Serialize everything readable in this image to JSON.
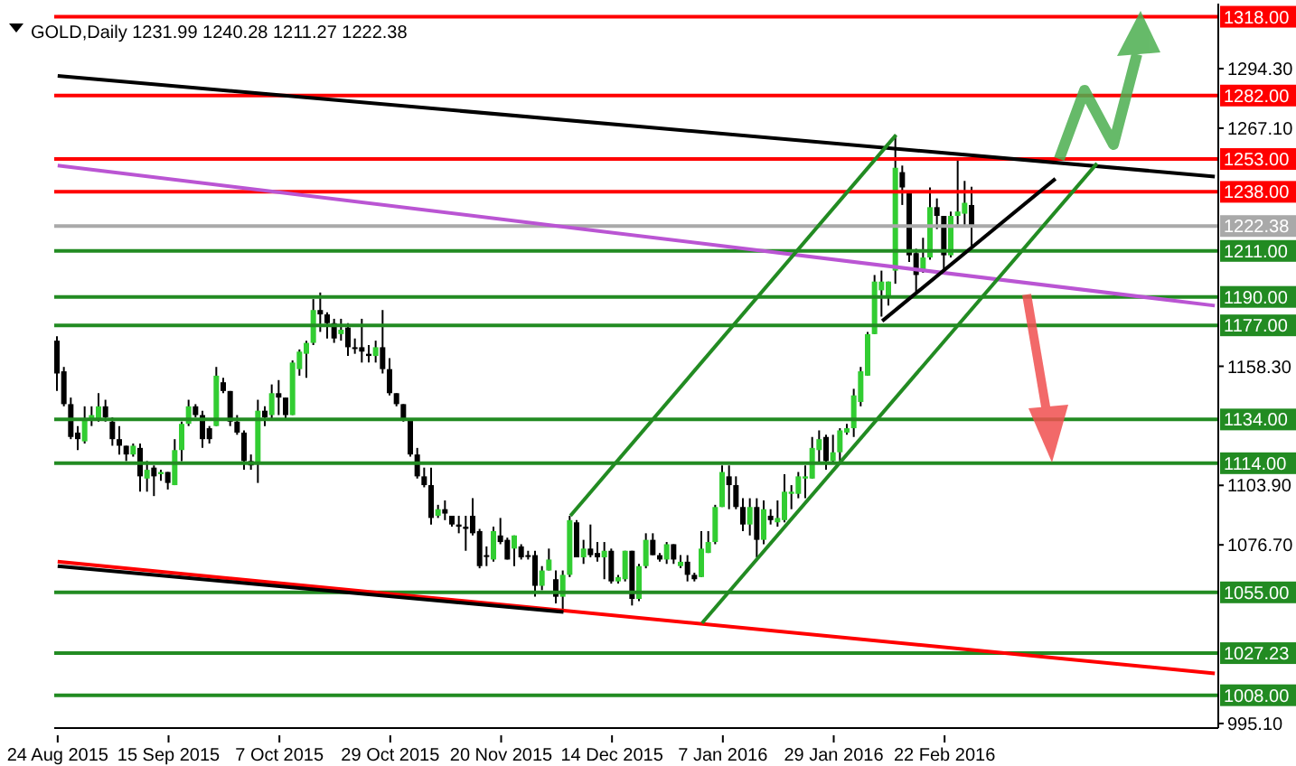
{
  "chart_data": {
    "type": "candlestick",
    "title": "GOLD,Daily 1231.99 1240.28 1211.27 1222.38",
    "categories": [
      "24 Aug 2015",
      null,
      null,
      null,
      null,
      null,
      null,
      null,
      null,
      null,
      null,
      null,
      null,
      null,
      null,
      null,
      "15 Sep 2015",
      null,
      null,
      null,
      null,
      null,
      null,
      null,
      null,
      null,
      null,
      null,
      null,
      null,
      null,
      null,
      "7 Oct 2015",
      null,
      null,
      null,
      null,
      null,
      null,
      null,
      null,
      null,
      null,
      null,
      null,
      null,
      null,
      null,
      "29 Oct 2015",
      null,
      null,
      null,
      null,
      null,
      null,
      null,
      null,
      null,
      null,
      null,
      null,
      null,
      null,
      null,
      "20 Nov 2015",
      null,
      null,
      null,
      null,
      null,
      null,
      null,
      null,
      null,
      null,
      null,
      null,
      null,
      null,
      null,
      "14 Dec 2015",
      null,
      null,
      null,
      null,
      null,
      null,
      null,
      null,
      null,
      null,
      null,
      null,
      null,
      null,
      null,
      "7 Jan 2016",
      null,
      null,
      null,
      null,
      null,
      null,
      null,
      null,
      null,
      null,
      null,
      null,
      null,
      null,
      null,
      "29 Jan 2016",
      null,
      null,
      null,
      null,
      null,
      null,
      null,
      null,
      null,
      null,
      null,
      null,
      null,
      null,
      null,
      "22 Feb 2016",
      null,
      null,
      null,
      null,
      null,
      null,
      null,
      null,
      null,
      null,
      null,
      null,
      null,
      null,
      null,
      null,
      null,
      null,
      null,
      null,
      null,
      null,
      null,
      null,
      null,
      null,
      null,
      null,
      null,
      null,
      null,
      null,
      null,
      null,
      null,
      null,
      null,
      null,
      null
    ],
    "ohlc": [
      [
        1170,
        1172,
        1147,
        1155
      ],
      [
        1156,
        1158,
        1140,
        1141
      ],
      [
        1141,
        1144,
        1125,
        1126
      ],
      [
        1128,
        1131,
        1120,
        1125
      ],
      [
        1124,
        1140,
        1123,
        1134
      ],
      [
        1134,
        1140,
        1131,
        1136
      ],
      [
        1134,
        1146,
        1133,
        1140
      ],
      [
        1140,
        1143,
        1133,
        1135
      ],
      [
        1133,
        1135,
        1122,
        1125
      ],
      [
        1125,
        1131,
        1118,
        1122
      ],
      [
        1122,
        1122,
        1115,
        1118
      ],
      [
        1118,
        1123,
        1117,
        1122
      ],
      [
        1121,
        1123,
        1101,
        1108
      ],
      [
        1107,
        1115,
        1101,
        1111
      ],
      [
        1112,
        1113,
        1099,
        1108
      ],
      [
        1109,
        1111,
        1106,
        1110
      ],
      [
        1110,
        1110,
        1102,
        1105
      ],
      [
        1104,
        1125,
        1104,
        1120
      ],
      [
        1120,
        1133,
        1115,
        1132
      ],
      [
        1132,
        1143,
        1131,
        1140
      ],
      [
        1140,
        1141,
        1135,
        1136
      ],
      [
        1136,
        1138,
        1121,
        1125
      ],
      [
        1130,
        1131,
        1123,
        1125
      ],
      [
        1131,
        1158,
        1131,
        1154
      ],
      [
        1151,
        1153,
        1146,
        1147
      ],
      [
        1147,
        1147,
        1131,
        1133
      ],
      [
        1133,
        1136,
        1127,
        1128
      ],
      [
        1128,
        1129,
        1111,
        1115
      ],
      [
        1115,
        1118,
        1111,
        1113
      ],
      [
        1114,
        1143,
        1105,
        1138
      ],
      [
        1138,
        1140,
        1131,
        1135
      ],
      [
        1136,
        1150,
        1134,
        1146
      ],
      [
        1146,
        1152,
        1136,
        1144
      ],
      [
        1144,
        1144,
        1134,
        1136
      ],
      [
        1136,
        1161,
        1136,
        1160
      ],
      [
        1157,
        1166,
        1154,
        1165
      ],
      [
        1164,
        1170,
        1153,
        1169
      ],
      [
        1169,
        1189,
        1168,
        1184
      ],
      [
        1184,
        1192,
        1174,
        1182
      ],
      [
        1182,
        1183,
        1171,
        1178
      ],
      [
        1178,
        1180,
        1169,
        1171
      ],
      [
        1173,
        1180,
        1170,
        1175
      ],
      [
        1176,
        1178,
        1163,
        1167
      ],
      [
        1167,
        1171,
        1164,
        1167
      ],
      [
        1167,
        1180,
        1160,
        1165
      ],
      [
        1164,
        1168,
        1160,
        1163
      ],
      [
        1163,
        1170,
        1160,
        1167
      ],
      [
        1167,
        1184,
        1155,
        1157
      ],
      [
        1157,
        1162,
        1145,
        1146
      ],
      [
        1146,
        1146,
        1140,
        1141
      ],
      [
        1141,
        1141,
        1133,
        1134
      ],
      [
        1134,
        1134,
        1117,
        1118
      ],
      [
        1118,
        1121,
        1107,
        1108
      ],
      [
        1108,
        1112,
        1103,
        1104
      ],
      [
        1104,
        1112,
        1086,
        1089
      ],
      [
        1090,
        1095,
        1089,
        1093
      ],
      [
        1093,
        1097,
        1088,
        1091
      ],
      [
        1090,
        1090,
        1085,
        1086
      ],
      [
        1086,
        1090,
        1082,
        1085
      ],
      [
        1085,
        1090,
        1074,
        1084
      ],
      [
        1090,
        1098,
        1081,
        1082
      ],
      [
        1083,
        1084,
        1066,
        1067
      ],
      [
        1072,
        1076,
        1067,
        1072
      ],
      [
        1070,
        1085,
        1069,
        1083
      ],
      [
        1081,
        1089,
        1077,
        1078
      ],
      [
        1079,
        1080,
        1070,
        1070
      ],
      [
        1075,
        1081,
        1067,
        1081
      ],
      [
        1076,
        1077,
        1070,
        1071
      ],
      [
        1072,
        1074,
        1070,
        1072
      ],
      [
        1072,
        1074,
        1053,
        1058
      ],
      [
        1058,
        1067,
        1056,
        1065
      ],
      [
        1065,
        1075,
        1065,
        1070
      ],
      [
        1061,
        1065,
        1050,
        1053
      ],
      [
        1053,
        1065,
        1047,
        1063
      ],
      [
        1063,
        1090,
        1062,
        1088
      ],
      [
        1087,
        1088,
        1071,
        1071
      ],
      [
        1071,
        1079,
        1068,
        1075
      ],
      [
        1075,
        1086,
        1071,
        1072
      ],
      [
        1073,
        1078,
        1069,
        1071
      ],
      [
        1071,
        1078,
        1061,
        1074
      ],
      [
        1074,
        1075,
        1059,
        1060
      ],
      [
        1060,
        1063,
        1059,
        1062
      ],
      [
        1061,
        1074,
        1060,
        1074
      ],
      [
        1074,
        1074,
        1049,
        1052
      ],
      [
        1052,
        1068,
        1051,
        1067
      ],
      [
        1067,
        1082,
        1066,
        1079
      ],
      [
        1079,
        1082,
        1072,
        1072
      ],
      [
        1072,
        1073,
        1069,
        1070
      ],
      [
        1070,
        1078,
        1068,
        1077
      ],
      [
        1077,
        1077,
        1068,
        1070
      ],
      [
        1067,
        1072,
        1066,
        1069
      ],
      [
        1069,
        1072,
        1060,
        1063
      ],
      [
        1063,
        1064,
        1060,
        1061
      ],
      [
        1062,
        1083,
        1062,
        1075
      ],
      [
        1073,
        1083,
        1073,
        1078
      ],
      [
        1078,
        1095,
        1077,
        1094
      ],
      [
        1094,
        1113,
        1094,
        1110
      ],
      [
        1108,
        1113,
        1093,
        1104
      ],
      [
        1104,
        1108,
        1093,
        1094
      ],
      [
        1094,
        1098,
        1083,
        1086
      ],
      [
        1086,
        1098,
        1081,
        1094
      ],
      [
        1094,
        1098,
        1071,
        1079
      ],
      [
        1079,
        1097,
        1077,
        1093
      ],
      [
        1090,
        1093,
        1086,
        1088
      ],
      [
        1087,
        1097,
        1085,
        1089
      ],
      [
        1088,
        1109,
        1087,
        1101
      ],
      [
        1100,
        1104,
        1093,
        1101
      ],
      [
        1100,
        1110,
        1098,
        1108
      ],
      [
        1107,
        1113,
        1098,
        1108
      ],
      [
        1107,
        1126,
        1107,
        1121
      ],
      [
        1120,
        1129,
        1114,
        1125
      ],
      [
        1126,
        1127,
        1111,
        1115
      ],
      [
        1115,
        1127,
        1114,
        1119
      ],
      [
        1119,
        1130,
        1115,
        1129
      ],
      [
        1128,
        1132,
        1127,
        1130
      ],
      [
        1130,
        1148,
        1126,
        1145
      ],
      [
        1142,
        1158,
        1140,
        1156
      ],
      [
        1154,
        1174,
        1154,
        1173
      ],
      [
        1173,
        1200,
        1173,
        1197
      ],
      [
        1193,
        1202,
        1181,
        1197
      ],
      [
        1190,
        1197,
        1186,
        1197
      ],
      [
        1202,
        1264,
        1196,
        1249
      ],
      [
        1247,
        1250,
        1232,
        1240
      ],
      [
        1238,
        1238,
        1206,
        1209
      ],
      [
        1210,
        1212,
        1192,
        1200
      ],
      [
        1202,
        1217,
        1201,
        1208
      ],
      [
        1208,
        1240,
        1207,
        1231
      ],
      [
        1231,
        1235,
        1221,
        1227
      ],
      [
        1227,
        1227,
        1202,
        1209
      ],
      [
        1209,
        1229,
        1208,
        1227
      ],
      [
        1227,
        1253,
        1223,
        1229
      ],
      [
        1228,
        1243,
        1222,
        1233
      ],
      [
        1231.99,
        1240.28,
        1211.27,
        1222.38
      ],
      null,
      null,
      null,
      null,
      null,
      null,
      null,
      null,
      null,
      null,
      null,
      null,
      null,
      null,
      null,
      null,
      null,
      null,
      null,
      null,
      null,
      null,
      null,
      null,
      null,
      null,
      null,
      null,
      null,
      null,
      null,
      null,
      null,
      null,
      null
    ],
    "colors": [
      "#000000",
      "#000000",
      "#000000",
      "#000000",
      "#32cd32",
      "#32cd32",
      "#32cd32",
      "#000000",
      "#000000",
      "#000000",
      "#000000",
      "#32cd32",
      "#000000",
      "#32cd32",
      "#000000",
      "#32cd32",
      "#000000",
      "#32cd32",
      "#32cd32",
      "#32cd32",
      "#000000",
      "#000000",
      "#000000",
      "#32cd32",
      "#000000",
      "#000000",
      "#000000",
      "#000000",
      "#000000",
      "#32cd32",
      "#000000",
      "#32cd32",
      "#000000",
      "#000000",
      "#32cd32",
      "#32cd32",
      "#32cd32",
      "#32cd32",
      "#000000",
      "#000000",
      "#000000",
      "#32cd32",
      "#000000",
      "#000000",
      "#000000",
      "#000000",
      "#32cd32",
      "#000000",
      "#000000",
      "#000000",
      "#000000",
      "#000000",
      "#000000",
      "#000000",
      "#000000",
      "#32cd32",
      "#000000",
      "#000000",
      "#000000",
      "#000000",
      "#000000",
      "#000000",
      "#000000",
      "#32cd32",
      "#000000",
      "#000000",
      "#32cd32",
      "#000000",
      "#000000",
      "#000000",
      "#32cd32",
      "#32cd32",
      "#000000",
      "#32cd32",
      "#32cd32",
      "#000000",
      "#32cd32",
      "#000000",
      "#000000",
      "#32cd32",
      "#000000",
      "#32cd32",
      "#32cd32",
      "#000000",
      "#32cd32",
      "#32cd32",
      "#000000",
      "#000000",
      "#32cd32",
      "#000000",
      "#32cd32",
      "#000000",
      "#000000",
      "#32cd32",
      "#32cd32",
      "#32cd32",
      "#32cd32",
      "#000000",
      "#000000",
      "#000000",
      "#32cd32",
      "#000000",
      "#32cd32",
      "#000000",
      "#32cd32",
      "#32cd32",
      "#32cd32",
      "#32cd32",
      "#32cd32",
      "#32cd32",
      "#32cd32",
      "#000000",
      "#32cd32",
      "#32cd32",
      "#32cd32",
      "#32cd32",
      "#32cd32",
      "#32cd32",
      "#32cd32",
      "#32cd32",
      "#32cd32",
      "#32cd32",
      "#000000",
      "#000000",
      "#000000",
      "#32cd32",
      "#32cd32",
      "#000000",
      "#000000",
      "#32cd32",
      "#32cd32",
      "#32cd32",
      "#000000",
      null,
      null,
      null,
      null,
      null,
      null,
      null,
      null,
      null,
      null,
      null,
      null,
      null,
      null,
      null,
      null,
      null,
      null,
      null,
      null,
      null,
      null,
      null,
      null,
      null,
      null,
      null,
      null,
      null,
      null,
      null,
      null,
      null,
      null,
      null
    ],
    "series": [
      {
        "type": "line",
        "color": "#000000",
        "values": [
          1291,
          null,
          null,
          null,
          null,
          null,
          null,
          null,
          null,
          null,
          null,
          null,
          null,
          null,
          null,
          null,
          null,
          null,
          null,
          null,
          null,
          null,
          null,
          null,
          null,
          null,
          null,
          null,
          null,
          null,
          null,
          null,
          null,
          null,
          null,
          null,
          null,
          null,
          null,
          null,
          null,
          null,
          null,
          null,
          null,
          null,
          null,
          null,
          null,
          null,
          null,
          null,
          null,
          null,
          null,
          null,
          null,
          null,
          null,
          null,
          null,
          null,
          null,
          null,
          null,
          null,
          null,
          null,
          null,
          null,
          null,
          null,
          null,
          null,
          null,
          null,
          null,
          null,
          null,
          null,
          null,
          null,
          null,
          null,
          null,
          null,
          null,
          null,
          null,
          null,
          null,
          null,
          null,
          null,
          null,
          null,
          null,
          null,
          null,
          null,
          null,
          null,
          null,
          null,
          null,
          null,
          null,
          null,
          null,
          null,
          null,
          null,
          null,
          null,
          null,
          null,
          null,
          null,
          null,
          null,
          null,
          null,
          null,
          null,
          null,
          null,
          null,
          null,
          null,
          null,
          null,
          null,
          null,
          null,
          null,
          null,
          null,
          null,
          null,
          null,
          null,
          null,
          null,
          null,
          null,
          null,
          null,
          null,
          null,
          null,
          null,
          null,
          null,
          null,
          null,
          null,
          null,
          null,
          null,
          null,
          null,
          null,
          null,
          null,
          null,
          null,
          null,
          1245
        ]
      },
      {
        "type": "line",
        "color": "#ba55d3",
        "values": [
          1250,
          null,
          null,
          null,
          null,
          null,
          null,
          null,
          null,
          null,
          null,
          null,
          null,
          null,
          null,
          null,
          null,
          null,
          null,
          null,
          null,
          null,
          null,
          null,
          null,
          null,
          null,
          null,
          null,
          null,
          null,
          null,
          null,
          null,
          null,
          null,
          null,
          null,
          null,
          null,
          null,
          null,
          null,
          null,
          null,
          null,
          null,
          null,
          null,
          null,
          null,
          null,
          null,
          null,
          null,
          null,
          null,
          null,
          null,
          null,
          null,
          null,
          null,
          null,
          null,
          null,
          null,
          null,
          null,
          null,
          null,
          null,
          null,
          null,
          null,
          null,
          null,
          null,
          null,
          null,
          null,
          null,
          null,
          null,
          null,
          null,
          null,
          null,
          null,
          null,
          null,
          null,
          null,
          null,
          null,
          null,
          null,
          null,
          null,
          null,
          null,
          null,
          null,
          null,
          null,
          null,
          null,
          null,
          null,
          null,
          null,
          null,
          null,
          null,
          null,
          null,
          null,
          null,
          null,
          null,
          null,
          null,
          null,
          null,
          null,
          null,
          null,
          null,
          null,
          null,
          null,
          null,
          null,
          null,
          null,
          null,
          null,
          null,
          null,
          null,
          null,
          null,
          null,
          null,
          null,
          null,
          null,
          null,
          null,
          null,
          null,
          null,
          null,
          null,
          null,
          null,
          null,
          null,
          null,
          null,
          null,
          null,
          null,
          null,
          null,
          null,
          null,
          1186
        ]
      },
      {
        "type": "line",
        "color": "#ff0000",
        "values": [
          1069,
          null,
          null,
          null,
          null,
          null,
          null,
          null,
          null,
          null,
          null,
          null,
          null,
          null,
          null,
          null,
          null,
          null,
          null,
          null,
          null,
          null,
          null,
          null,
          null,
          null,
          null,
          null,
          null,
          null,
          null,
          null,
          null,
          null,
          null,
          null,
          null,
          null,
          null,
          null,
          null,
          null,
          null,
          null,
          null,
          null,
          null,
          null,
          null,
          null,
          null,
          null,
          null,
          null,
          null,
          null,
          null,
          null,
          null,
          null,
          null,
          null,
          null,
          null,
          null,
          null,
          null,
          null,
          null,
          null,
          null,
          null,
          null,
          null,
          null,
          null,
          null,
          null,
          null,
          null,
          null,
          null,
          null,
          null,
          null,
          null,
          null,
          null,
          null,
          null,
          null,
          null,
          null,
          null,
          null,
          null,
          null,
          null,
          null,
          null,
          null,
          null,
          null,
          null,
          null,
          null,
          null,
          null,
          null,
          null,
          null,
          null,
          null,
          null,
          null,
          null,
          null,
          null,
          null,
          null,
          null,
          null,
          null,
          null,
          null,
          null,
          null,
          null,
          null,
          null,
          null,
          null,
          null,
          null,
          null,
          null,
          null,
          null,
          null,
          null,
          null,
          null,
          null,
          null,
          null,
          null,
          null,
          null,
          null,
          null,
          null,
          null,
          null,
          null,
          null,
          null,
          null,
          null,
          null,
          null,
          null,
          null,
          null,
          null,
          null,
          null,
          null,
          1018
        ]
      },
      {
        "type": "line",
        "color": "#000000",
        "values": [
          1067,
          null,
          null,
          null,
          null,
          null,
          null,
          null,
          null,
          null,
          null,
          null,
          null,
          null,
          null,
          null,
          null,
          null,
          null,
          null,
          null,
          null,
          null,
          null,
          null,
          null,
          null,
          null,
          null,
          null,
          null,
          null,
          null,
          null,
          null,
          null,
          null,
          null,
          null,
          null,
          null,
          null,
          null,
          null,
          null,
          null,
          null,
          null,
          null,
          null,
          null,
          null,
          null,
          null,
          null,
          null,
          null,
          null,
          null,
          null,
          null,
          null,
          null,
          null,
          null,
          null,
          null,
          null,
          null,
          null,
          null,
          null,
          null,
          1046,
          null,
          null,
          null,
          null,
          null,
          null,
          null,
          null,
          null,
          null,
          null,
          null,
          null,
          null,
          null,
          null,
          null,
          null,
          null,
          null,
          null,
          null,
          null,
          null,
          null,
          null,
          null,
          null,
          null,
          null,
          null,
          null,
          null,
          null,
          null,
          null,
          null,
          null,
          null,
          null,
          null,
          null,
          null,
          null,
          null,
          null,
          null,
          null,
          null,
          null,
          null,
          null,
          null,
          null,
          null,
          null,
          null,
          null,
          null,
          null,
          null,
          null,
          null,
          null,
          null,
          null,
          null,
          null,
          null,
          null,
          null,
          null,
          null,
          null,
          null,
          null,
          null,
          null,
          null,
          null,
          null,
          null,
          null,
          null,
          null,
          null,
          null,
          null,
          null,
          null,
          null,
          null,
          null,
          null
        ]
      },
      {
        "type": "line",
        "color": "#228b22",
        "values": [
          null,
          null,
          null,
          null,
          null,
          null,
          null,
          null,
          null,
          null,
          null,
          null,
          null,
          null,
          null,
          null,
          null,
          null,
          null,
          null,
          null,
          null,
          null,
          null,
          null,
          null,
          null,
          null,
          null,
          null,
          null,
          null,
          null,
          null,
          null,
          null,
          null,
          null,
          null,
          null,
          null,
          null,
          null,
          null,
          null,
          null,
          null,
          null,
          null,
          null,
          null,
          null,
          null,
          null,
          null,
          null,
          null,
          null,
          null,
          null,
          null,
          null,
          null,
          null,
          null,
          null,
          null,
          null,
          null,
          null,
          null,
          null,
          null,
          null,
          1090,
          null,
          null,
          null,
          null,
          null,
          null,
          null,
          null,
          null,
          null,
          null,
          null,
          null,
          null,
          null,
          null,
          null,
          null,
          null,
          null,
          null,
          null,
          null,
          null,
          null,
          null,
          null,
          null,
          null,
          null,
          null,
          null,
          null,
          null,
          null,
          null,
          null,
          null,
          null,
          null,
          null,
          null,
          null,
          null,
          null,
          null,
          1264,
          null,
          null,
          null,
          null,
          null,
          null,
          null,
          null,
          null,
          null,
          null,
          null,
          null,
          null,
          null,
          null,
          null,
          null,
          null,
          null,
          null,
          null,
          null,
          null,
          null,
          null,
          null,
          null,
          null,
          null,
          null,
          null,
          null,
          null,
          null,
          null,
          null,
          null,
          null,
          null,
          null,
          null,
          null,
          null,
          null,
          null
        ]
      },
      {
        "type": "line",
        "color": "#228b22",
        "values": [
          null,
          null,
          null,
          null,
          null,
          null,
          null,
          null,
          null,
          null,
          null,
          null,
          null,
          null,
          null,
          null,
          null,
          null,
          null,
          null,
          null,
          null,
          null,
          null,
          null,
          null,
          null,
          null,
          null,
          null,
          null,
          null,
          null,
          null,
          null,
          null,
          null,
          null,
          null,
          null,
          null,
          null,
          null,
          null,
          null,
          null,
          null,
          null,
          null,
          null,
          null,
          null,
          null,
          null,
          null,
          null,
          null,
          null,
          null,
          null,
          null,
          null,
          null,
          null,
          null,
          null,
          null,
          null,
          null,
          null,
          null,
          null,
          null,
          null,
          null,
          null,
          null,
          null,
          null,
          null,
          null,
          null,
          null,
          null,
          null,
          null,
          null,
          null,
          null,
          null,
          null,
          null,
          null,
          1041,
          null,
          null,
          null,
          null,
          null,
          null,
          null,
          null,
          null,
          null,
          null,
          null,
          null,
          null,
          null,
          null,
          null,
          null,
          null,
          null,
          null,
          null,
          null,
          null,
          null,
          null,
          null,
          null,
          null,
          null,
          null,
          null,
          null,
          null,
          null,
          null,
          null,
          null,
          null,
          null,
          null,
          null,
          null,
          null,
          null,
          null,
          null,
          null,
          null,
          null,
          null,
          null,
          null,
          null,
          null,
          null,
          1251,
          null,
          null,
          null,
          null,
          null,
          null,
          null,
          null,
          null,
          null,
          null,
          null,
          null,
          null,
          null,
          null,
          null
        ]
      },
      {
        "type": "line",
        "color": "#000000",
        "values": [
          null,
          null,
          null,
          null,
          null,
          null,
          null,
          null,
          null,
          null,
          null,
          null,
          null,
          null,
          null,
          null,
          null,
          null,
          null,
          null,
          null,
          null,
          null,
          null,
          null,
          null,
          null,
          null,
          null,
          null,
          null,
          null,
          null,
          null,
          null,
          null,
          null,
          null,
          null,
          null,
          null,
          null,
          null,
          null,
          null,
          null,
          null,
          null,
          null,
          null,
          null,
          null,
          null,
          null,
          null,
          null,
          null,
          null,
          null,
          null,
          null,
          null,
          null,
          null,
          null,
          null,
          null,
          null,
          null,
          null,
          null,
          null,
          null,
          null,
          null,
          null,
          null,
          null,
          null,
          null,
          null,
          null,
          null,
          null,
          null,
          null,
          null,
          null,
          null,
          null,
          null,
          null,
          null,
          null,
          null,
          null,
          null,
          null,
          null,
          null,
          null,
          null,
          null,
          null,
          null,
          null,
          null,
          null,
          null,
          null,
          null,
          null,
          null,
          null,
          null,
          null,
          null,
          null,
          null,
          1179,
          null,
          null,
          null,
          null,
          null,
          null,
          null,
          null,
          null,
          null,
          null,
          null,
          null,
          null,
          null,
          null,
          null,
          null,
          null,
          null,
          null,
          null,
          null,
          null,
          1244,
          null,
          null,
          null,
          null,
          null,
          null,
          null,
          null,
          null,
          null,
          null,
          null,
          null,
          null,
          null,
          null,
          null,
          null,
          null,
          null,
          null,
          null,
          null
        ]
      }
    ],
    "ylim": [
      993,
      1324
    ],
    "yticks": [
      {
        "value": 995.1,
        "label": "995.10"
      },
      {
        "value": 1076.7,
        "label": "1076.70"
      },
      {
        "value": 1103.9,
        "label": "1103.90"
      },
      {
        "value": 1158.3,
        "label": "1158.30"
      },
      {
        "value": 1267.1,
        "label": "1267.10"
      },
      {
        "value": 1294.3,
        "label": "1294.30"
      }
    ],
    "ref_lines": [
      {
        "axis": "y",
        "value": 1318,
        "label": "1318.00",
        "color": "#ff0000"
      },
      {
        "axis": "y",
        "value": 1282,
        "label": "1282.00",
        "color": "#ff0000"
      },
      {
        "axis": "y",
        "value": 1253,
        "label": "1253.00",
        "color": "#ff0000"
      },
      {
        "axis": "y",
        "value": 1238,
        "label": "1238.00",
        "color": "#ff0000"
      },
      {
        "axis": "y",
        "value": 1222.38,
        "label": "1222.38",
        "color": "#a9a9a9"
      },
      {
        "axis": "y",
        "value": 1211,
        "label": "1211.00",
        "color": "#228b22"
      },
      {
        "axis": "y",
        "value": 1190,
        "label": "1190.00",
        "color": "#228b22"
      },
      {
        "axis": "y",
        "value": 1177,
        "label": "1177.00",
        "color": "#228b22"
      },
      {
        "axis": "y",
        "value": 1134,
        "label": "1134.00",
        "color": "#228b22"
      },
      {
        "axis": "y",
        "value": 1114,
        "label": "1114.00",
        "color": "#228b22"
      },
      {
        "axis": "y",
        "value": 1055,
        "label": "1055.00",
        "color": "#228b22"
      },
      {
        "axis": "y",
        "value": 1027.23,
        "label": "1027.23",
        "color": "#228b22"
      },
      {
        "axis": "y",
        "value": 1008,
        "label": "1008.00",
        "color": "#228b22"
      }
    ]
  }
}
